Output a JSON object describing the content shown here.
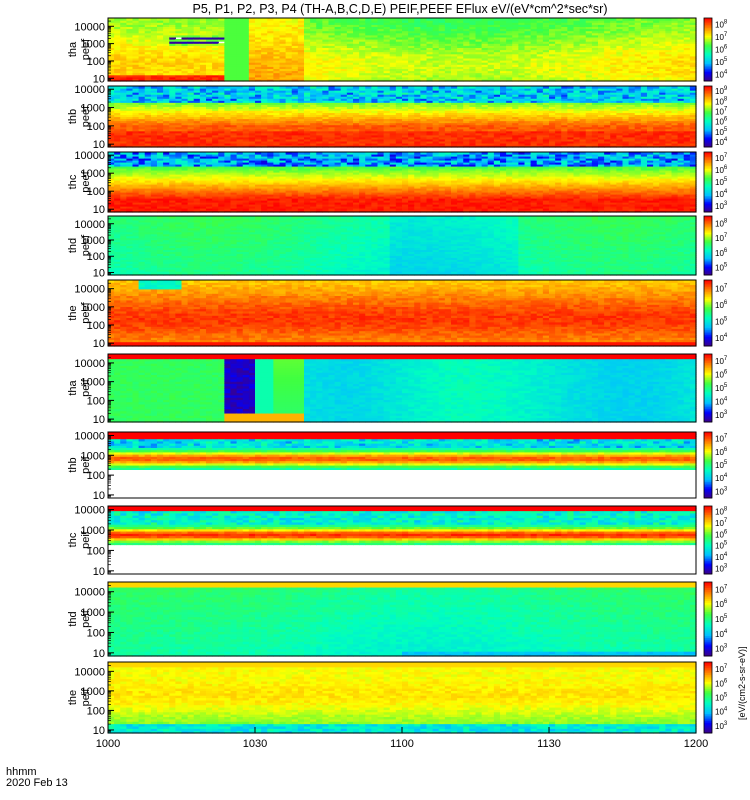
{
  "title": "P5, P1, P2, P3, P4 (TH-A,B,C,D,E) PEIF,PEEF EFlux eV/(eV*cm^2*sec*sr)",
  "footer": {
    "time_label": "hhmm",
    "date_label": "2020 Feb 13"
  },
  "colorbar_label": "[eV/(cm2-s-sr-eV)]",
  "chart_data": {
    "type": "heatmap",
    "title": "P5, P1, P2, P3, P4 (TH-A,B,C,D,E) PEIF,PEEF EFlux eV/(eV*cm^2*sec*sr)",
    "x_ticks": [
      "1000",
      "1030",
      "1100",
      "1130",
      "1200"
    ],
    "x_range": [
      "10:00",
      "12:00"
    ],
    "y_scale": "log",
    "colormap": [
      "#400080",
      "#0000ff",
      "#00c0ff",
      "#00ffc0",
      "#40ff40",
      "#ffff00",
      "#ff8000",
      "#ff0000"
    ],
    "panels": [
      {
        "label": [
          "tha",
          "peef"
        ],
        "y_ticks": [
          "10",
          "100",
          "1000",
          "10000"
        ],
        "y_range": [
          7,
          30000
        ],
        "cbar_ticks": [
          "10^4",
          "10^5",
          "10^6",
          "10^7",
          "10^8"
        ],
        "cbar_range": [
          10000,
          100000000
        ],
        "profile": "tha_e"
      },
      {
        "label": [
          "thb",
          "peef"
        ],
        "y_ticks": [
          "10",
          "100",
          "1000",
          "10000"
        ],
        "y_range": [
          7,
          15000
        ],
        "cbar_ticks": [
          "10^4",
          "10^5",
          "10^6",
          "10^7",
          "10^8",
          "10^9"
        ],
        "cbar_range": [
          10000,
          1000000000
        ],
        "profile": "thb_e"
      },
      {
        "label": [
          "thc",
          "peef"
        ],
        "y_ticks": [
          "10",
          "100",
          "1000",
          "10000"
        ],
        "y_range": [
          7,
          15000
        ],
        "cbar_ticks": [
          "10^3",
          "10^4",
          "10^5",
          "10^6",
          "10^7"
        ],
        "cbar_range": [
          1000,
          10000000
        ],
        "profile": "thc_e"
      },
      {
        "label": [
          "thd",
          "peef"
        ],
        "y_ticks": [
          "10",
          "100",
          "1000",
          "10000"
        ],
        "y_range": [
          7,
          30000
        ],
        "cbar_ticks": [
          "10^5",
          "10^6",
          "10^7",
          "10^8"
        ],
        "cbar_range": [
          100000,
          100000000
        ],
        "profile": "thd_e"
      },
      {
        "label": [
          "the",
          "peef"
        ],
        "y_ticks": [
          "10",
          "100",
          "1000",
          "10000"
        ],
        "y_range": [
          7,
          30000
        ],
        "cbar_ticks": [
          "10^4",
          "10^5",
          "10^6",
          "10^7"
        ],
        "cbar_range": [
          10000,
          10000000
        ],
        "profile": "the_e"
      },
      {
        "label": [
          "tha",
          "peif"
        ],
        "y_ticks": [
          "10",
          "100",
          "1000",
          "10000"
        ],
        "y_range": [
          7,
          30000
        ],
        "cbar_ticks": [
          "10^3",
          "10^4",
          "10^5",
          "10^6",
          "10^7"
        ],
        "cbar_range": [
          1000,
          10000000
        ],
        "profile": "tha_i"
      },
      {
        "label": [
          "thb",
          "peif"
        ],
        "y_ticks": [
          "10",
          "100",
          "1000",
          "10000"
        ],
        "y_range": [
          7,
          15000
        ],
        "cbar_ticks": [
          "10^3",
          "10^4",
          "10^5",
          "10^6",
          "10^7"
        ],
        "cbar_range": [
          1000,
          10000000
        ],
        "profile": "thb_i"
      },
      {
        "label": [
          "thc",
          "peif"
        ],
        "y_ticks": [
          "10",
          "100",
          "1000",
          "10000"
        ],
        "y_range": [
          7,
          15000
        ],
        "cbar_ticks": [
          "10^3",
          "10^4",
          "10^5",
          "10^6",
          "10^7",
          "10^8"
        ],
        "cbar_range": [
          1000,
          100000000
        ],
        "profile": "thc_i"
      },
      {
        "label": [
          "thd",
          "peif"
        ],
        "y_ticks": [
          "10",
          "100",
          "1000",
          "10000"
        ],
        "y_range": [
          7,
          30000
        ],
        "cbar_ticks": [
          "10^3",
          "10^4",
          "10^5",
          "10^6",
          "10^7"
        ],
        "cbar_range": [
          1000,
          10000000
        ],
        "profile": "thd_i"
      },
      {
        "label": [
          "the",
          "peif"
        ],
        "y_ticks": [
          "10",
          "100",
          "1000",
          "10000"
        ],
        "y_range": [
          7,
          30000
        ],
        "cbar_ticks": [
          "10^3",
          "10^4",
          "10^5",
          "10^6",
          "10^7"
        ],
        "cbar_range": [
          1000,
          10000000
        ],
        "profile": "the_i"
      }
    ]
  }
}
